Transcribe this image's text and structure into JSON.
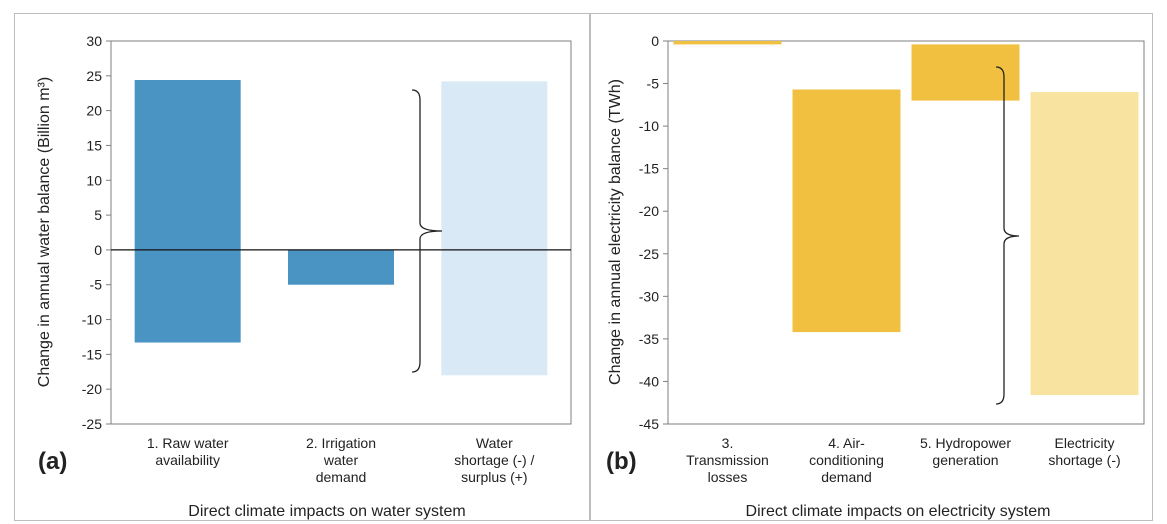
{
  "chart_data": [
    {
      "type": "bar",
      "panel_label": "(a)",
      "xlabel": "Direct climate impacts on water system",
      "ylabel": "Change in annual water balance (Billion m³)",
      "ylim": [
        -25,
        30
      ],
      "yticks": [
        -25,
        -20,
        -15,
        -10,
        -5,
        0,
        5,
        10,
        15,
        20,
        25,
        30
      ],
      "categories": [
        [
          "1. Raw water",
          "availability"
        ],
        [
          "2. Irrigation",
          "water",
          "demand"
        ],
        [
          "Water",
          "shortage (-) /",
          "surplus (+)"
        ]
      ],
      "bars": [
        {
          "low": -13.3,
          "high": 24.4,
          "color": "#4a94c4"
        },
        {
          "low": -5.0,
          "high": 0,
          "color": "#4a94c4"
        },
        {
          "low": -18.0,
          "high": 24.2,
          "color": "#d9e9f5"
        }
      ],
      "zero_line": true,
      "grid": false
    },
    {
      "type": "bar",
      "panel_label": "(b)",
      "xlabel": "Direct climate impacts on electricity system",
      "ylabel": "Change in annual electricity balance (TWh)",
      "ylim": [
        -45,
        0
      ],
      "yticks": [
        -45,
        -40,
        -35,
        -30,
        -25,
        -20,
        -15,
        -10,
        -5,
        0
      ],
      "categories": [
        [
          "3.",
          "Transmission",
          "losses"
        ],
        [
          "4. Air-",
          "conditioning",
          "demand"
        ],
        [
          "5. Hydropower",
          "generation"
        ],
        [
          "Electricity",
          "shortage (-)"
        ]
      ],
      "bars": [
        {
          "low": -0.4,
          "high": 0,
          "color": "#f2c040"
        },
        {
          "low": -34.2,
          "high": -5.7,
          "color": "#f2c040"
        },
        {
          "low": -7.0,
          "high": -0.4,
          "color": "#f2c040"
        },
        {
          "low": -41.6,
          "high": -6.0,
          "color": "#f8e3a0"
        }
      ],
      "zero_line": false,
      "grid": false
    }
  ]
}
